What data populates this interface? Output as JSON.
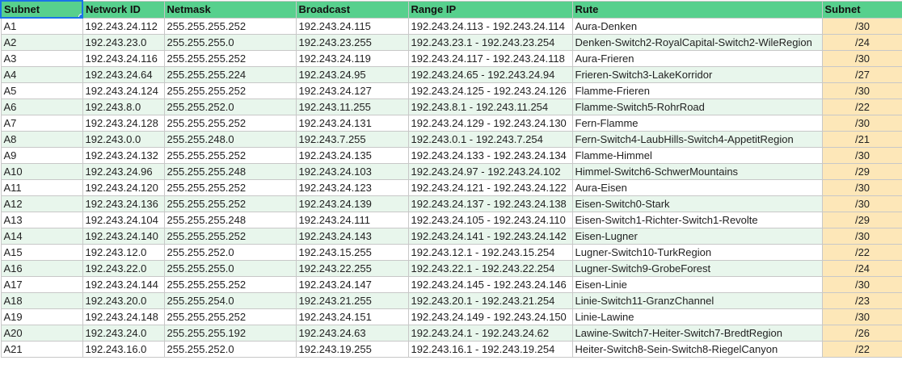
{
  "headers": [
    "Subnet",
    "Network ID",
    "Netmask",
    "Broadcast",
    "Range IP",
    "Rute",
    "Subnet"
  ],
  "rows": [
    [
      "A1",
      "192.243.24.112",
      "255.255.255.252",
      "192.243.24.115",
      "192.243.24.113 - 192.243.24.114",
      "Aura-Denken",
      "/30"
    ],
    [
      "A2",
      "192.243.23.0",
      "255.255.255.0",
      "192.243.23.255",
      "192.243.23.1 - 192.243.23.254",
      "Denken-Switch2-RoyalCapital-Switch2-WileRegion",
      "/24"
    ],
    [
      "A3",
      "192.243.24.116",
      "255.255.255.252",
      "192.243.24.119",
      "192.243.24.117 - 192.243.24.118",
      "Aura-Frieren",
      "/30"
    ],
    [
      "A4",
      "192.243.24.64",
      "255.255.255.224",
      "192.243.24.95",
      "192.243.24.65 - 192.243.24.94",
      "Frieren-Switch3-LakeKorridor",
      "/27"
    ],
    [
      "A5",
      "192.243.24.124",
      "255.255.255.252",
      "192.243.24.127",
      "192.243.24.125 - 192.243.24.126",
      "Flamme-Frieren",
      "/30"
    ],
    [
      "A6",
      "192.243.8.0",
      "255.255.252.0",
      "192.243.11.255",
      "192.243.8.1 - 192.243.11.254",
      "Flamme-Switch5-RohrRoad",
      "/22"
    ],
    [
      "A7",
      "192.243.24.128",
      "255.255.255.252",
      "192.243.24.131",
      "192.243.24.129 - 192.243.24.130",
      "Fern-Flamme",
      "/30"
    ],
    [
      "A8",
      "192.243.0.0",
      "255.255.248.0",
      "192.243.7.255",
      "192.243.0.1 - 192.243.7.254",
      "Fern-Switch4-LaubHills-Switch4-AppetitRegion",
      "/21"
    ],
    [
      "A9",
      "192.243.24.132",
      "255.255.255.252",
      "192.243.24.135",
      "192.243.24.133 - 192.243.24.134",
      "Flamme-Himmel",
      "/30"
    ],
    [
      "A10",
      "192.243.24.96",
      "255.255.255.248",
      "192.243.24.103",
      "192.243.24.97 - 192.243.24.102",
      "Himmel-Switch6-SchwerMountains",
      "/29"
    ],
    [
      "A11",
      "192.243.24.120",
      "255.255.255.252",
      "192.243.24.123",
      "192.243.24.121 - 192.243.24.122",
      "Aura-Eisen",
      "/30"
    ],
    [
      "A12",
      "192.243.24.136",
      "255.255.255.252",
      "192.243.24.139",
      "192.243.24.137 - 192.243.24.138",
      "Eisen-Switch0-Stark",
      "/30"
    ],
    [
      "A13",
      "192.243.24.104",
      "255.255.255.248",
      "192.243.24.111",
      "192.243.24.105 - 192.243.24.110",
      "Eisen-Switch1-Richter-Switch1-Revolte",
      "/29"
    ],
    [
      "A14",
      "192.243.24.140",
      "255.255.255.252",
      "192.243.24.143",
      "192.243.24.141 - 192.243.24.142",
      "Eisen-Lugner",
      "/30"
    ],
    [
      "A15",
      "192.243.12.0",
      "255.255.252.0",
      "192.243.15.255",
      "192.243.12.1 - 192.243.15.254",
      "Lugner-Switch10-TurkRegion",
      "/22"
    ],
    [
      "A16",
      "192.243.22.0",
      "255.255.255.0",
      "192.243.22.255",
      "192.243.22.1 - 192.243.22.254",
      "Lugner-Switch9-GrobeForest",
      "/24"
    ],
    [
      "A17",
      "192.243.24.144",
      "255.255.255.252",
      "192.243.24.147",
      "192.243.24.145 - 192.243.24.146",
      "Eisen-Linie",
      "/30"
    ],
    [
      "A18",
      "192.243.20.0",
      "255.255.254.0",
      "192.243.21.255",
      "192.243.20.1 - 192.243.21.254",
      "Linie-Switch11-GranzChannel",
      "/23"
    ],
    [
      "A19",
      "192.243.24.148",
      "255.255.255.252",
      "192.243.24.151",
      "192.243.24.149 - 192.243.24.150",
      "Linie-Lawine",
      "/30"
    ],
    [
      "A20",
      "192.243.24.0",
      "255.255.255.192",
      "192.243.24.63",
      "192.243.24.1 - 192.243.24.62",
      "Lawine-Switch7-Heiter-Switch7-BredtRegion",
      "/26"
    ],
    [
      "A21",
      "192.243.16.0",
      "255.255.252.0",
      "192.243.19.255",
      "192.243.16.1 - 192.243.19.254",
      "Heiter-Switch8-Sein-Switch8-RiegelCanyon",
      "/22"
    ]
  ]
}
